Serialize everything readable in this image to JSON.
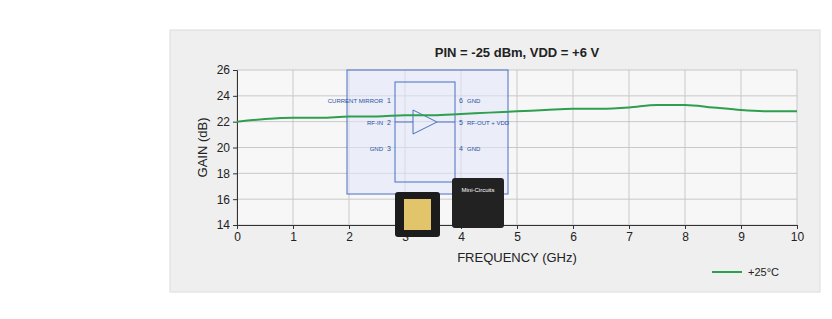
{
  "chart_data": {
    "type": "line",
    "title": "PIN = -25 dBm, VDD = +6 V",
    "x_label": "FREQUENCY (GHz)",
    "y_label": "GAIN (dB)",
    "x": [
      0,
      0.5,
      1,
      1.5,
      2,
      2.5,
      3,
      3.5,
      4,
      4.5,
      5,
      5.5,
      6,
      6.5,
      7,
      7.5,
      8,
      8.5,
      9,
      9.5,
      10
    ],
    "series": [
      {
        "name": "+25°C",
        "color": "#2e9e4f",
        "values": [
          22.0,
          22.2,
          22.3,
          22.3,
          22.4,
          22.4,
          22.5,
          22.5,
          22.6,
          22.7,
          22.8,
          22.9,
          23.0,
          23.0,
          23.1,
          23.3,
          23.3,
          23.1,
          22.9,
          22.8,
          22.8
        ]
      }
    ],
    "xlim": [
      0,
      10
    ],
    "xticks": [
      0,
      1,
      2,
      3,
      4,
      5,
      6,
      7,
      8,
      9,
      10
    ],
    "ylim": [
      14,
      26
    ],
    "yticks": [
      14,
      16,
      18,
      20,
      22,
      24,
      26
    ],
    "grid": true,
    "legend": "lower right",
    "schematic_pins": [
      {
        "pin": 1,
        "label": "CURRENT MIRROR"
      },
      {
        "pin": 2,
        "label": "RF-IN"
      },
      {
        "pin": 3,
        "label": "GND"
      },
      {
        "pin": 6,
        "label": "GND"
      },
      {
        "pin": 5,
        "label": "RF-OUT + VDD"
      },
      {
        "pin": 4,
        "label": "GND"
      }
    ],
    "annotations": [
      "Mini-Circuits"
    ]
  }
}
